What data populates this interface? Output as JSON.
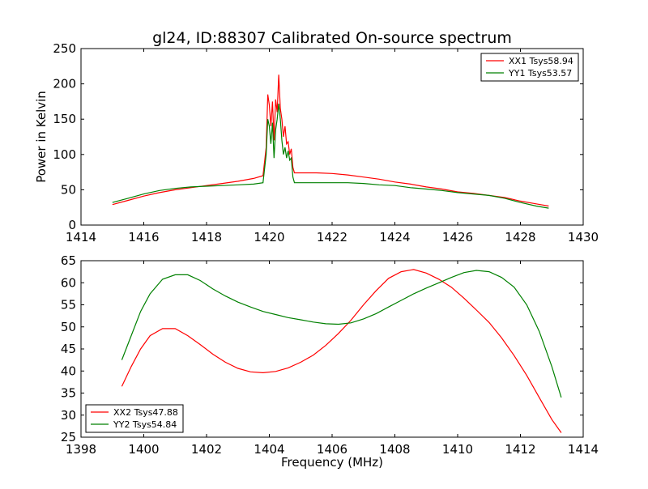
{
  "title": "gl24, ID:88307 Calibrated On-source spectrum",
  "colors": {
    "red": "#ff0000",
    "green": "#008000"
  },
  "chart_data": [
    {
      "type": "line",
      "ylabel": "Power in Kelvin",
      "xlabel": "",
      "xlim": [
        1414,
        1430
      ],
      "ylim": [
        0,
        250
      ],
      "xticks": [
        "1414",
        "1416",
        "1418",
        "1420",
        "1422",
        "1424",
        "1426",
        "1428",
        "1430"
      ],
      "yticks": [
        "0",
        "50",
        "100",
        "150",
        "200",
        "250"
      ],
      "legend_position": "top-right",
      "series": [
        {
          "name": "XX1 Tsys58.94",
          "color": "#ff0000",
          "points": [
            [
              1415.0,
              29
            ],
            [
              1415.5,
              35
            ],
            [
              1416.0,
              41
            ],
            [
              1416.5,
              46
            ],
            [
              1417.0,
              50
            ],
            [
              1417.5,
              53
            ],
            [
              1418.0,
              56
            ],
            [
              1418.5,
              59
            ],
            [
              1419.0,
              62
            ],
            [
              1419.5,
              66
            ],
            [
              1419.8,
              70
            ],
            [
              1419.9,
              110
            ],
            [
              1419.95,
              185
            ],
            [
              1420.0,
              170
            ],
            [
              1420.05,
              140
            ],
            [
              1420.1,
              175
            ],
            [
              1420.15,
              120
            ],
            [
              1420.2,
              178
            ],
            [
              1420.25,
              160
            ],
            [
              1420.3,
              213
            ],
            [
              1420.35,
              165
            ],
            [
              1420.4,
              150
            ],
            [
              1420.45,
              125
            ],
            [
              1420.5,
              140
            ],
            [
              1420.55,
              115
            ],
            [
              1420.6,
              118
            ],
            [
              1420.65,
              100
            ],
            [
              1420.7,
              108
            ],
            [
              1420.75,
              82
            ],
            [
              1420.8,
              74
            ],
            [
              1421.0,
              74
            ],
            [
              1421.5,
              74
            ],
            [
              1422.0,
              73
            ],
            [
              1422.5,
              71
            ],
            [
              1423.0,
              68
            ],
            [
              1423.5,
              65
            ],
            [
              1424.0,
              61
            ],
            [
              1424.5,
              58
            ],
            [
              1425.0,
              54
            ],
            [
              1425.5,
              51
            ],
            [
              1426.0,
              47
            ],
            [
              1426.5,
              45
            ],
            [
              1427.0,
              42
            ],
            [
              1427.5,
              39
            ],
            [
              1428.0,
              34
            ],
            [
              1428.5,
              30
            ],
            [
              1428.9,
              27
            ]
          ]
        },
        {
          "name": "YY1 Tsys53.57",
          "color": "#008000",
          "points": [
            [
              1415.0,
              32
            ],
            [
              1415.5,
              38
            ],
            [
              1416.0,
              44
            ],
            [
              1416.5,
              49
            ],
            [
              1417.0,
              52
            ],
            [
              1417.5,
              54
            ],
            [
              1418.0,
              55
            ],
            [
              1418.5,
              56
            ],
            [
              1419.0,
              57
            ],
            [
              1419.5,
              58
            ],
            [
              1419.8,
              60
            ],
            [
              1419.9,
              100
            ],
            [
              1419.95,
              150
            ],
            [
              1420.0,
              140
            ],
            [
              1420.05,
              115
            ],
            [
              1420.1,
              145
            ],
            [
              1420.15,
              95
            ],
            [
              1420.2,
              135
            ],
            [
              1420.25,
              150
            ],
            [
              1420.3,
              172
            ],
            [
              1420.35,
              150
            ],
            [
              1420.4,
              120
            ],
            [
              1420.45,
              100
            ],
            [
              1420.5,
              110
            ],
            [
              1420.55,
              95
            ],
            [
              1420.6,
              105
            ],
            [
              1420.65,
              92
            ],
            [
              1420.7,
              95
            ],
            [
              1420.75,
              68
            ],
            [
              1420.8,
              60
            ],
            [
              1421.0,
              60
            ],
            [
              1421.5,
              60
            ],
            [
              1422.0,
              60
            ],
            [
              1422.5,
              60
            ],
            [
              1423.0,
              59
            ],
            [
              1423.5,
              57
            ],
            [
              1424.0,
              56
            ],
            [
              1424.5,
              53
            ],
            [
              1425.0,
              51
            ],
            [
              1425.5,
              49
            ],
            [
              1426.0,
              46
            ],
            [
              1426.5,
              44
            ],
            [
              1427.0,
              42
            ],
            [
              1427.5,
              38
            ],
            [
              1428.0,
              32
            ],
            [
              1428.5,
              27
            ],
            [
              1428.9,
              24
            ]
          ]
        }
      ]
    },
    {
      "type": "line",
      "xlabel": "Frequency (MHz)",
      "ylabel": "",
      "xlim": [
        1398,
        1414
      ],
      "ylim": [
        25,
        65
      ],
      "xticks": [
        "1398",
        "1400",
        "1402",
        "1404",
        "1406",
        "1408",
        "1410",
        "1412",
        "1414"
      ],
      "yticks": [
        "25",
        "30",
        "35",
        "40",
        "45",
        "50",
        "55",
        "60",
        "65"
      ],
      "legend_position": "lower-left",
      "series": [
        {
          "name": "XX2 Tsys47.88",
          "color": "#ff0000",
          "points": [
            [
              1399.3,
              36.5
            ],
            [
              1399.6,
              41
            ],
            [
              1399.9,
              45
            ],
            [
              1400.2,
              48
            ],
            [
              1400.6,
              49.6
            ],
            [
              1401.0,
              49.6
            ],
            [
              1401.4,
              48
            ],
            [
              1401.8,
              46
            ],
            [
              1402.2,
              43.8
            ],
            [
              1402.6,
              42
            ],
            [
              1403.0,
              40.6
            ],
            [
              1403.4,
              39.8
            ],
            [
              1403.8,
              39.6
            ],
            [
              1404.2,
              39.9
            ],
            [
              1404.6,
              40.7
            ],
            [
              1405.0,
              42
            ],
            [
              1405.4,
              43.6
            ],
            [
              1405.8,
              45.8
            ],
            [
              1406.2,
              48.5
            ],
            [
              1406.6,
              51.5
            ],
            [
              1407.0,
              55
            ],
            [
              1407.4,
              58.2
            ],
            [
              1407.8,
              61
            ],
            [
              1408.2,
              62.5
            ],
            [
              1408.6,
              63
            ],
            [
              1409.0,
              62.2
            ],
            [
              1409.4,
              60.8
            ],
            [
              1409.8,
              59
            ],
            [
              1410.2,
              56.5
            ],
            [
              1410.6,
              53.8
            ],
            [
              1411.0,
              51
            ],
            [
              1411.4,
              47.5
            ],
            [
              1411.8,
              43.5
            ],
            [
              1412.2,
              39
            ],
            [
              1412.6,
              34
            ],
            [
              1413.0,
              29
            ],
            [
              1413.3,
              26
            ]
          ]
        },
        {
          "name": "YY2 Tsys54.84",
          "color": "#008000",
          "points": [
            [
              1399.3,
              42.5
            ],
            [
              1399.6,
              48
            ],
            [
              1399.9,
              53.5
            ],
            [
              1400.2,
              57.5
            ],
            [
              1400.6,
              60.8
            ],
            [
              1401.0,
              61.8
            ],
            [
              1401.4,
              61.8
            ],
            [
              1401.8,
              60.5
            ],
            [
              1402.2,
              58.6
            ],
            [
              1402.6,
              57
            ],
            [
              1403.0,
              55.6
            ],
            [
              1403.4,
              54.5
            ],
            [
              1403.8,
              53.5
            ],
            [
              1404.2,
              52.8
            ],
            [
              1404.6,
              52.1
            ],
            [
              1405.0,
              51.6
            ],
            [
              1405.4,
              51.1
            ],
            [
              1405.8,
              50.7
            ],
            [
              1406.2,
              50.6
            ],
            [
              1406.6,
              50.9
            ],
            [
              1407.0,
              51.8
            ],
            [
              1407.4,
              53
            ],
            [
              1407.8,
              54.5
            ],
            [
              1408.2,
              56
            ],
            [
              1408.6,
              57.5
            ],
            [
              1409.0,
              58.8
            ],
            [
              1409.4,
              60
            ],
            [
              1409.8,
              61.2
            ],
            [
              1410.2,
              62.3
            ],
            [
              1410.6,
              62.8
            ],
            [
              1411.0,
              62.5
            ],
            [
              1411.4,
              61.2
            ],
            [
              1411.8,
              59
            ],
            [
              1412.2,
              55
            ],
            [
              1412.6,
              49
            ],
            [
              1413.0,
              41
            ],
            [
              1413.3,
              34
            ]
          ]
        }
      ]
    }
  ]
}
